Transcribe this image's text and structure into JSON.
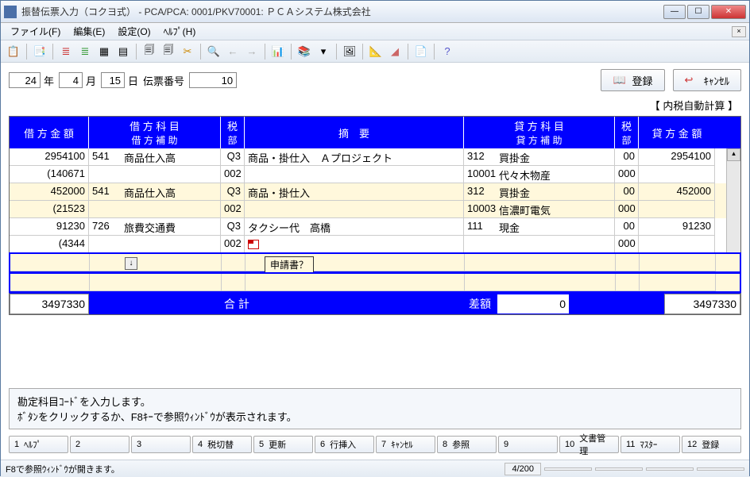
{
  "window": {
    "title": "振替伝票入力（コクヨ式）  - PCA/PCA: 0001/PKV70001: ＰＣＡシステム株式会社"
  },
  "menus": {
    "file": "ファイル(F)",
    "edit": "編集(E)",
    "settings": "設定(O)",
    "help": "ﾍﾙﾌﾟ(H)"
  },
  "date": {
    "year": "24",
    "year_l": "年",
    "month": "4",
    "month_l": "月",
    "day": "15",
    "day_l": "日",
    "slip_l": "伝票番号",
    "slip": "10"
  },
  "buttons": {
    "register": "登録",
    "cancel": "ｷｬﾝｾﾙ"
  },
  "tax_note": "【 内税自動計算 】",
  "headers": {
    "dr_amt": "借 方 金 額",
    "dr_sub1": "借 方 科 目",
    "dr_sub2": "借 方 補 助",
    "tax": "税",
    "dept": "部",
    "desc": "摘　要",
    "cr_sub1": "貸 方 科 目",
    "cr_sub2": "貸 方 補 助",
    "cr_amt": "貸 方 金 額"
  },
  "rows": [
    {
      "dr_amt": "2954100",
      "dr_sub_code": "541",
      "dr_sub_name": "商品仕入高",
      "tax": "Q3",
      "desc": "商品・掛仕入　Ａプロジェクト",
      "cr_sub_code": "312",
      "cr_sub_name": "買掛金",
      "tax2": "00",
      "cr_amt": "2954100",
      "dr_amt2": "(140671",
      "dept": "002",
      "cr_aux_code": "10001",
      "cr_aux_name": "代々木物産",
      "dept2": "000"
    },
    {
      "dr_amt": "452000",
      "dr_sub_code": "541",
      "dr_sub_name": "商品仕入高",
      "tax": "Q3",
      "desc": "商品・掛仕入",
      "cr_sub_code": "312",
      "cr_sub_name": "買掛金",
      "tax2": "00",
      "cr_amt": "452000",
      "dr_amt2": "(21523",
      "dept": "002",
      "cr_aux_code": "10003",
      "cr_aux_name": "信濃町電気",
      "dept2": "000"
    },
    {
      "dr_amt": "91230",
      "dr_sub_code": "726",
      "dr_sub_name": "旅費交通費",
      "tax": "Q3",
      "desc": "タクシー代　高橋",
      "cr_sub_code": "111",
      "cr_sub_name": "現金",
      "tax2": "00",
      "cr_amt": "91230",
      "dr_amt2": "(4344",
      "dept": "002",
      "cr_aux_code": "",
      "cr_aux_name": "",
      "dept2": "000"
    }
  ],
  "tooltip": "申請書？",
  "totals": {
    "dr": "3497330",
    "label": "合 計",
    "diff_l": "差額",
    "diff": "0",
    "cr": "3497330"
  },
  "info": {
    "l1": "勘定科目ｺｰﾄﾞを入力します。",
    "l2": "ﾎﾞﾀﾝをクリックするか、F8ｷｰで参照ｳｨﾝﾄﾞｳが表示されます。"
  },
  "fn": {
    "1": "ﾍﾙﾌﾟ",
    "2": "",
    "3": "",
    "4": "税切替",
    "5": "更新",
    "6": "行挿入",
    "7": "ｷｬﾝｾﾙ",
    "8": "参照",
    "9": "",
    "10": "文書管理",
    "11": "ﾏｽﾀｰ",
    "12": "登録"
  },
  "status": {
    "left": "F8で参照ｳｨﾝﾄﾞｳが開きます。",
    "pos": "4/200"
  }
}
